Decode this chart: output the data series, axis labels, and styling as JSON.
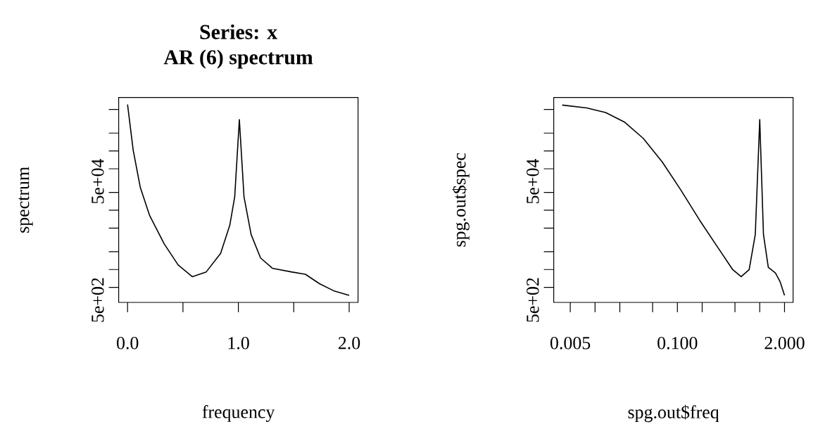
{
  "chart_data": [
    {
      "type": "line",
      "title": "Series: x",
      "subtitle": "AR (6) spectrum",
      "xlabel": "frequency",
      "ylabel": "spectrum",
      "log": "y",
      "xlim": [
        -0.08,
        2.08
      ],
      "ylim": [
        279,
        798000
      ],
      "xticks": [
        {
          "value": 0,
          "label": "0.0"
        },
        {
          "value": 0.5,
          "label": null
        },
        {
          "value": 1,
          "label": "1.0"
        },
        {
          "value": 1.5,
          "label": null
        },
        {
          "value": 2,
          "label": "2.0"
        }
      ],
      "yticks": [
        {
          "value": 500,
          "label": "5e+02"
        },
        {
          "value": 1000,
          "label": null
        },
        {
          "value": 2000,
          "label": null
        },
        {
          "value": 5000,
          "label": null
        },
        {
          "value": 10000,
          "label": null
        },
        {
          "value": 20000,
          "label": null
        },
        {
          "value": 50000,
          "label": "5e+04"
        },
        {
          "value": 100000,
          "label": null
        },
        {
          "value": 200000,
          "label": null
        },
        {
          "value": 500000,
          "label": null
        }
      ],
      "series": [
        {
          "color": "#000000",
          "x": [
            0,
            0.051,
            0.115,
            0.2,
            0.33,
            0.456,
            0.584,
            0.71,
            0.84,
            0.923,
            0.967,
            1.009,
            1.051,
            1.115,
            1.2,
            1.307,
            1.478,
            1.605,
            1.733,
            1.86,
            2.0
          ],
          "values": [
            607000,
            103000,
            24200,
            8100,
            2720,
            1200,
            757,
            912,
            1880,
            5620,
            16800,
            339000,
            16800,
            3900,
            1570,
            1050,
            912,
            832,
            575,
            439,
            366
          ]
        }
      ]
    },
    {
      "type": "line",
      "xlabel": "spg.out$freq",
      "ylabel": "spg.out$spec",
      "log": "xy",
      "xlim": [
        0.00315,
        2.54
      ],
      "ylim": [
        279,
        798000
      ],
      "xticks": [
        {
          "value": 0.005,
          "label": "0.005"
        },
        {
          "value": 0.01,
          "label": null
        },
        {
          "value": 0.02,
          "label": null
        },
        {
          "value": 0.05,
          "label": null
        },
        {
          "value": 0.1,
          "label": "0.100"
        },
        {
          "value": 0.2,
          "label": null
        },
        {
          "value": 0.5,
          "label": null
        },
        {
          "value": 1,
          "label": null
        },
        {
          "value": 2,
          "label": "2.000"
        }
      ],
      "yticks": [
        {
          "value": 500,
          "label": "5e+02"
        },
        {
          "value": 1000,
          "label": null
        },
        {
          "value": 2000,
          "label": null
        },
        {
          "value": 5000,
          "label": null
        },
        {
          "value": 10000,
          "label": null
        },
        {
          "value": 20000,
          "label": null
        },
        {
          "value": 50000,
          "label": "5e+04"
        },
        {
          "value": 100000,
          "label": null
        },
        {
          "value": 200000,
          "label": null
        },
        {
          "value": 500000,
          "label": null
        }
      ],
      "series": [
        {
          "color": "#000000",
          "x": [
            0.00399,
            0.00794,
            0.01343,
            0.0227,
            0.0385,
            0.0652,
            0.11,
            0.187,
            0.316,
            0.47,
            0.595,
            0.744,
            0.883,
            1.0,
            1.11,
            1.27,
            1.55,
            1.76,
            2.0
          ],
          "values": [
            594000,
            532000,
            445000,
            308000,
            163000,
            65800,
            22000,
            6730,
            2260,
            995,
            757,
            995,
            3900,
            339000,
            3900,
            1090,
            877,
            631,
            366
          ]
        }
      ]
    }
  ]
}
